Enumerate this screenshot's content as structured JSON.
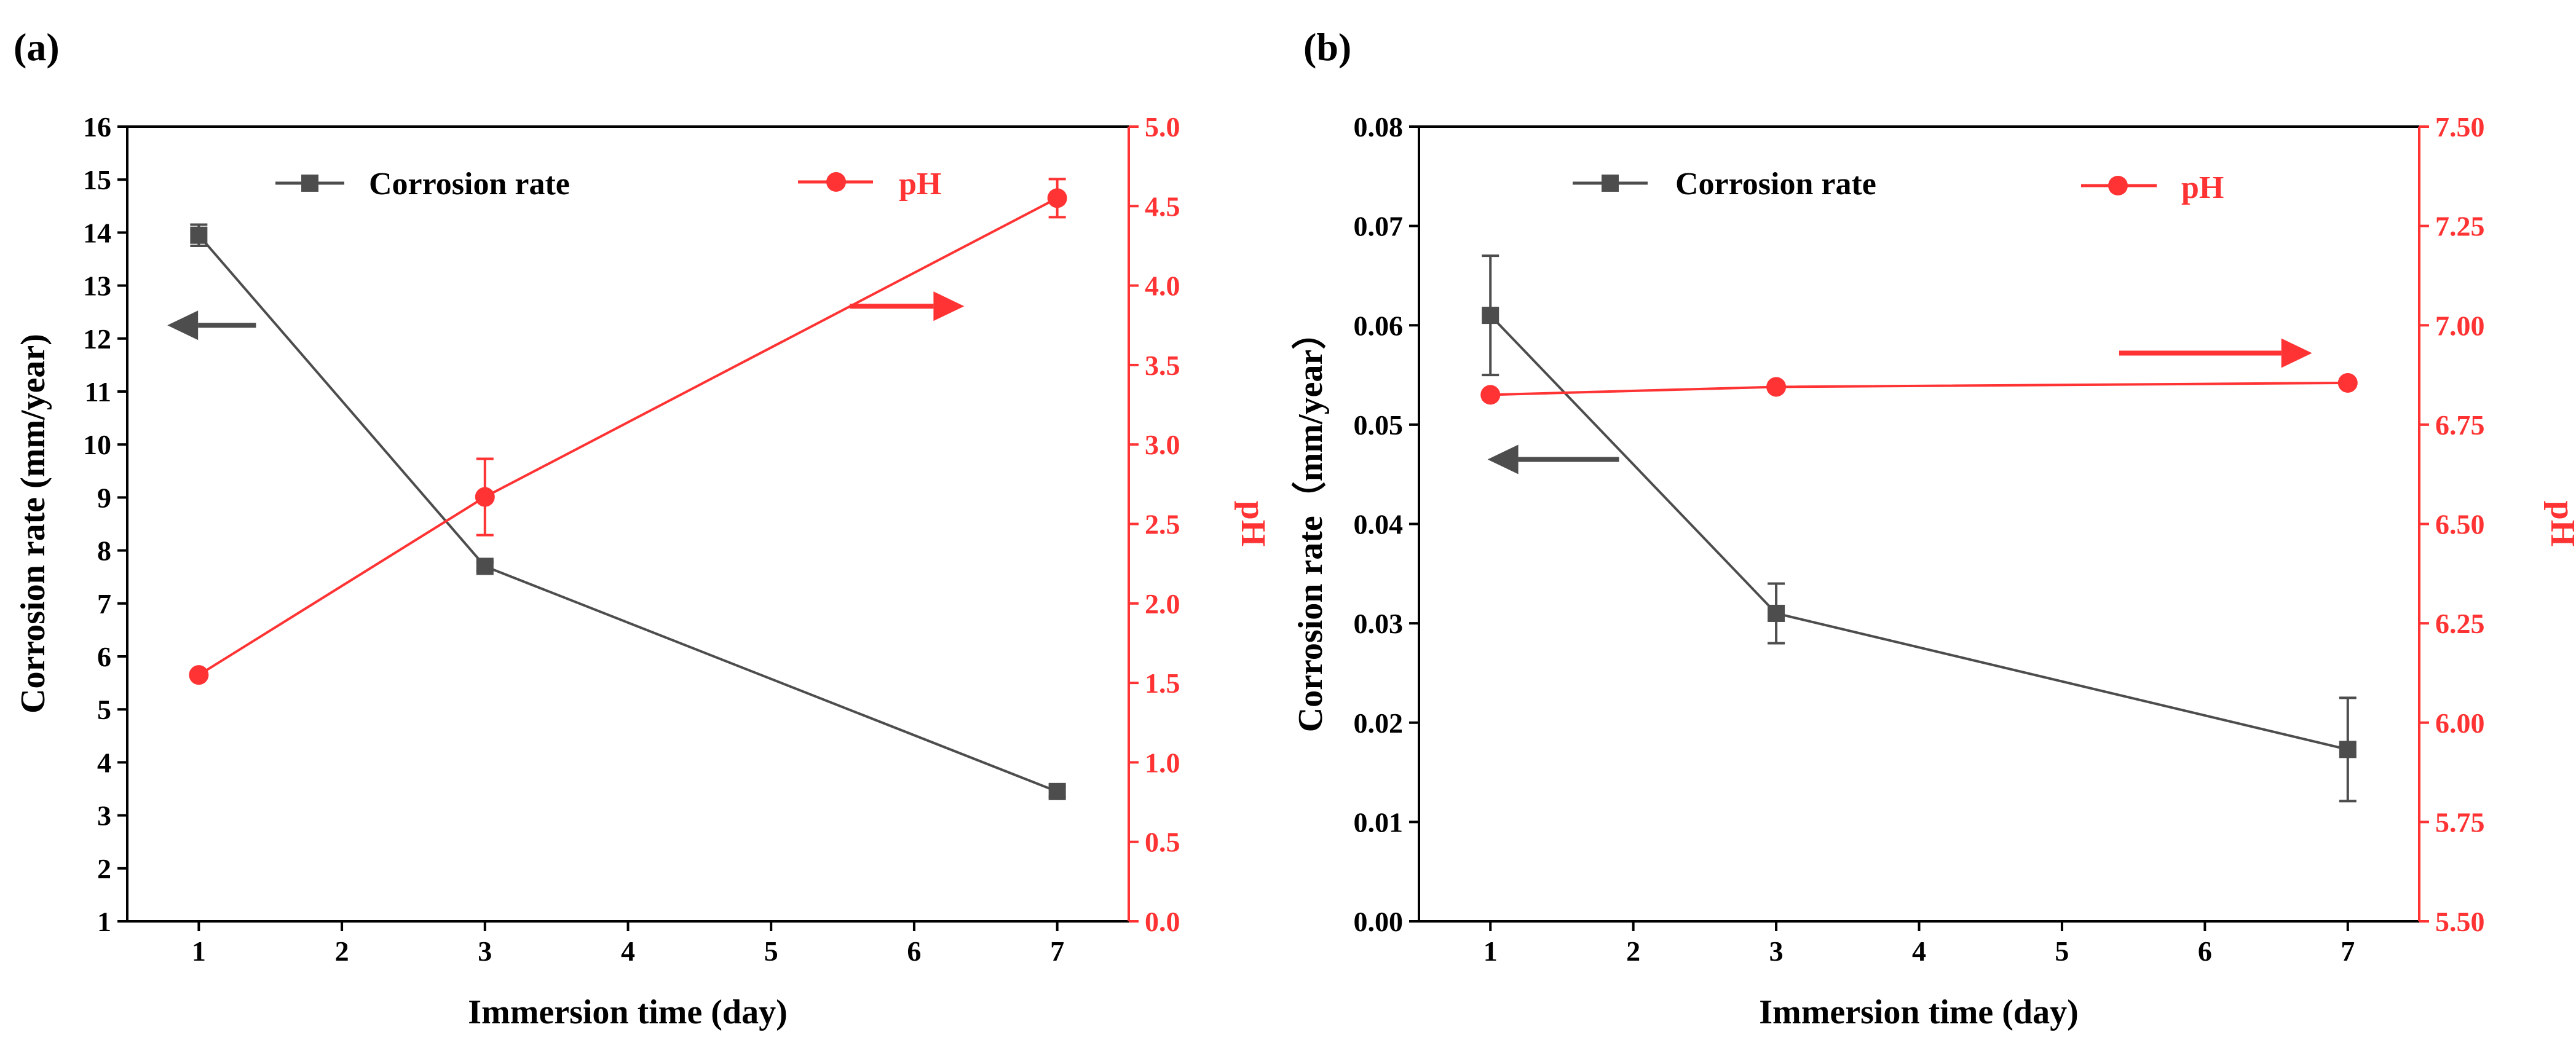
{
  "colors": {
    "corrosion": "#4d4d4d",
    "ph": "#ff3333",
    "axis": "#000000"
  },
  "chart_data": [
    {
      "type": "line",
      "panel_label": "(a)",
      "xlabel": "Immersion time (day)",
      "ylabel_left": "Corrosion rate (mm/year)",
      "ylabel_right": "pH",
      "xlim": [
        0.5,
        7.5
      ],
      "ylim_left": [
        1,
        16
      ],
      "ylim_right": [
        0,
        5
      ],
      "x_ticks": [
        1,
        2,
        3,
        4,
        5,
        6,
        7
      ],
      "x_tick_labels": [
        "1",
        "2",
        "3",
        "4",
        "5",
        "6",
        "7"
      ],
      "y_left_ticks": [
        1,
        2,
        3,
        4,
        5,
        6,
        7,
        8,
        9,
        10,
        11,
        12,
        13,
        14,
        15,
        16
      ],
      "y_left_tick_labels": [
        "1",
        "2",
        "3",
        "4",
        "5",
        "6",
        "7",
        "8",
        "9",
        "10",
        "11",
        "12",
        "13",
        "14",
        "15",
        "16"
      ],
      "y_right_ticks": [
        0,
        0.5,
        1,
        1.5,
        2,
        2.5,
        3,
        3.5,
        4,
        4.5,
        5
      ],
      "y_right_tick_labels": [
        "0.0",
        "0.5",
        "1.0",
        "1.5",
        "2.0",
        "2.5",
        "3.0",
        "3.5",
        "4.0",
        "4.5",
        "5.0"
      ],
      "series": [
        {
          "name": "Corrosion rate",
          "axis": "left",
          "marker": "square",
          "color": "#4d4d4d",
          "x": [
            1,
            3,
            7
          ],
          "y": [
            13.95,
            7.7,
            3.45
          ],
          "err": [
            0.2,
            0.08,
            0.1
          ]
        },
        {
          "name": "pH",
          "axis": "right",
          "marker": "circle",
          "color": "#ff3333",
          "x": [
            1,
            3,
            7
          ],
          "y": [
            1.55,
            2.67,
            4.55
          ],
          "err": [
            0.0,
            0.24,
            0.12
          ]
        }
      ],
      "arrows": [
        {
          "target": "left",
          "color": "#4d4d4d",
          "x_from": 1.4,
          "x_to": 0.78,
          "y": 12.25,
          "axis": "left"
        },
        {
          "target": "right",
          "color": "#ff3333",
          "x_from": 5.55,
          "x_to": 6.35,
          "y": 3.87,
          "axis": "right"
        }
      ]
    },
    {
      "type": "line",
      "panel_label": "(b)",
      "xlabel": "Immersion time (day)",
      "ylabel_left": "Corrosion rate（mm/year）",
      "ylabel_right": "pH",
      "xlim": [
        0.5,
        7.5
      ],
      "ylim_left": [
        0,
        0.08
      ],
      "ylim_right": [
        5.5,
        7.5
      ],
      "x_ticks": [
        1,
        2,
        3,
        4,
        5,
        6,
        7
      ],
      "x_tick_labels": [
        "1",
        "2",
        "3",
        "4",
        "5",
        "6",
        "7"
      ],
      "y_left_ticks": [
        0,
        0.01,
        0.02,
        0.03,
        0.04,
        0.05,
        0.06,
        0.07,
        0.08
      ],
      "y_left_tick_labels": [
        "0.00",
        "0.01",
        "0.02",
        "0.03",
        "0.04",
        "0.05",
        "0.06",
        "0.07",
        "0.08"
      ],
      "y_right_ticks": [
        5.5,
        5.75,
        6.0,
        6.25,
        6.5,
        6.75,
        7.0,
        7.25,
        7.5
      ],
      "y_right_tick_labels": [
        "5.50",
        "5.75",
        "6.00",
        "6.25",
        "6.50",
        "6.75",
        "7.00",
        "7.25",
        "7.50"
      ],
      "series": [
        {
          "name": "Corrosion rate",
          "axis": "left",
          "marker": "square",
          "color": "#4d4d4d",
          "x": [
            1,
            3,
            7
          ],
          "y": [
            0.061,
            0.031,
            0.0173
          ],
          "err": [
            0.006,
            0.003,
            0.0052
          ]
        },
        {
          "name": "pH",
          "axis": "right",
          "marker": "circle",
          "color": "#ff3333",
          "x": [
            1,
            3,
            7
          ],
          "y": [
            6.825,
            6.845,
            6.855
          ],
          "err": [
            0,
            0,
            0
          ]
        }
      ],
      "arrows": [
        {
          "target": "left",
          "color": "#4d4d4d",
          "x_from": 1.9,
          "x_to": 0.98,
          "y": 0.0465,
          "axis": "left"
        },
        {
          "target": "right",
          "color": "#ff3333",
          "x_from": 5.4,
          "x_to": 6.75,
          "y": 6.93,
          "axis": "right"
        }
      ]
    }
  ]
}
